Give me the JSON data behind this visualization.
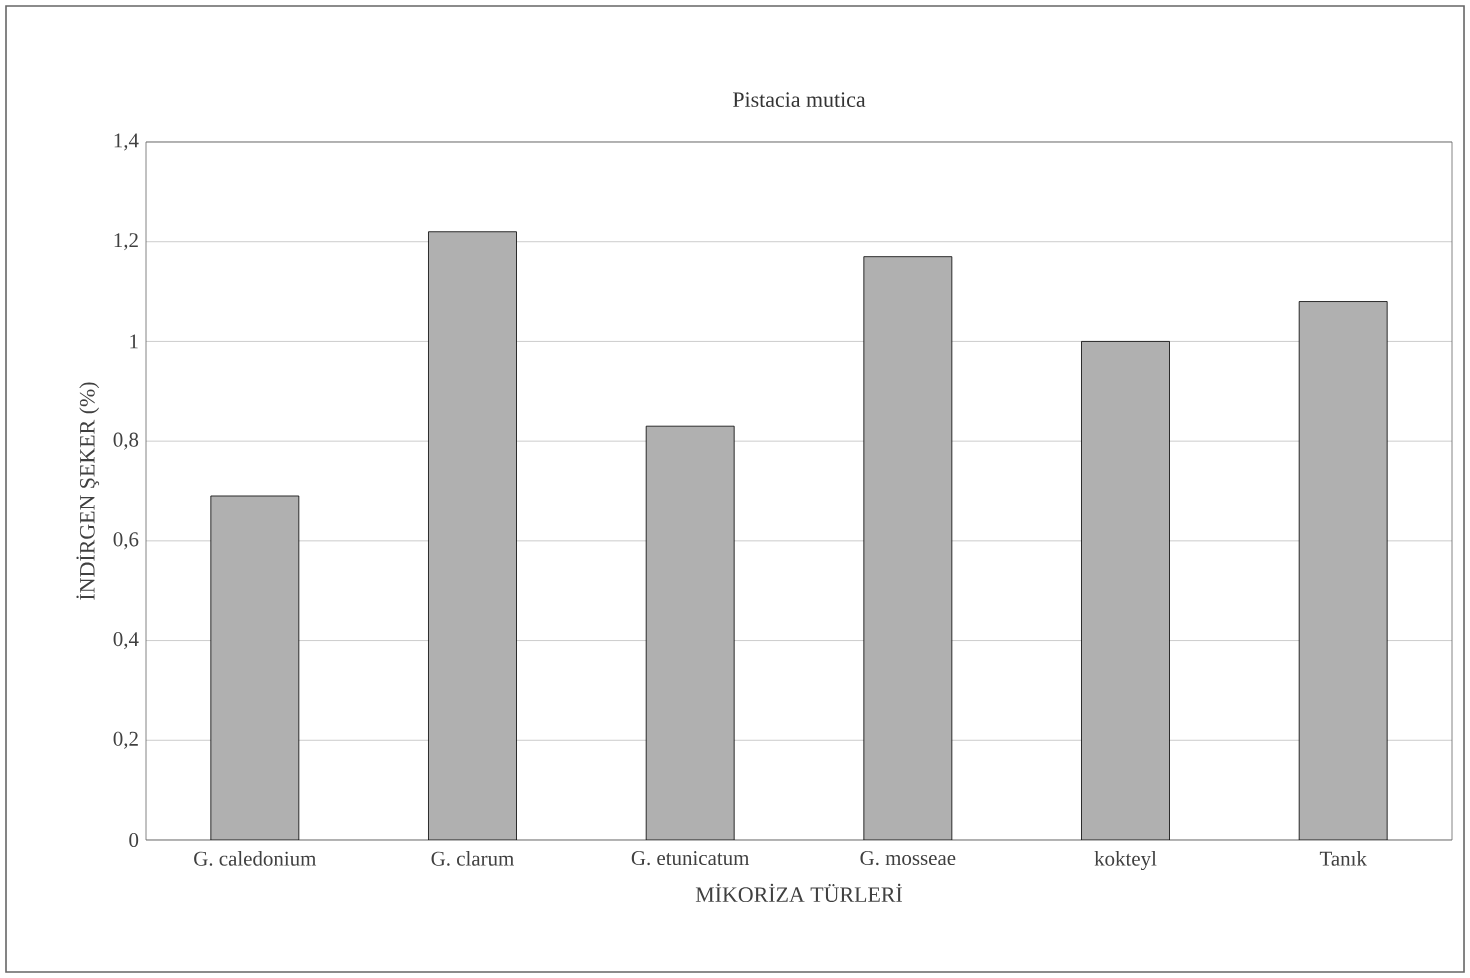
{
  "chart_data": {
    "type": "bar",
    "title": "Pistacia mutica",
    "xlabel": "MİKORİZA TÜRLERİ",
    "ylabel": "İNDİRGEN ŞEKER (%)",
    "categories": [
      "G. caledonium",
      "G. clarum",
      "G. etunicatum",
      "G. mosseae",
      "kokteyl",
      "Tanık"
    ],
    "values": [
      0.69,
      1.22,
      0.83,
      1.17,
      1.0,
      1.08
    ],
    "color": "#b0b0b0",
    "ylim": [
      0,
      1.4
    ],
    "yticks": [
      {
        "value": 0,
        "label": "0"
      },
      {
        "value": 0.2,
        "label": "0,2"
      },
      {
        "value": 0.4,
        "label": "0,4"
      },
      {
        "value": 0.6,
        "label": "0,6"
      },
      {
        "value": 0.8,
        "label": "0,8"
      },
      {
        "value": 1,
        "label": "1"
      },
      {
        "value": 1.2,
        "label": "1,2"
      },
      {
        "value": 1.4,
        "label": "1,4"
      }
    ],
    "grid": "y"
  }
}
